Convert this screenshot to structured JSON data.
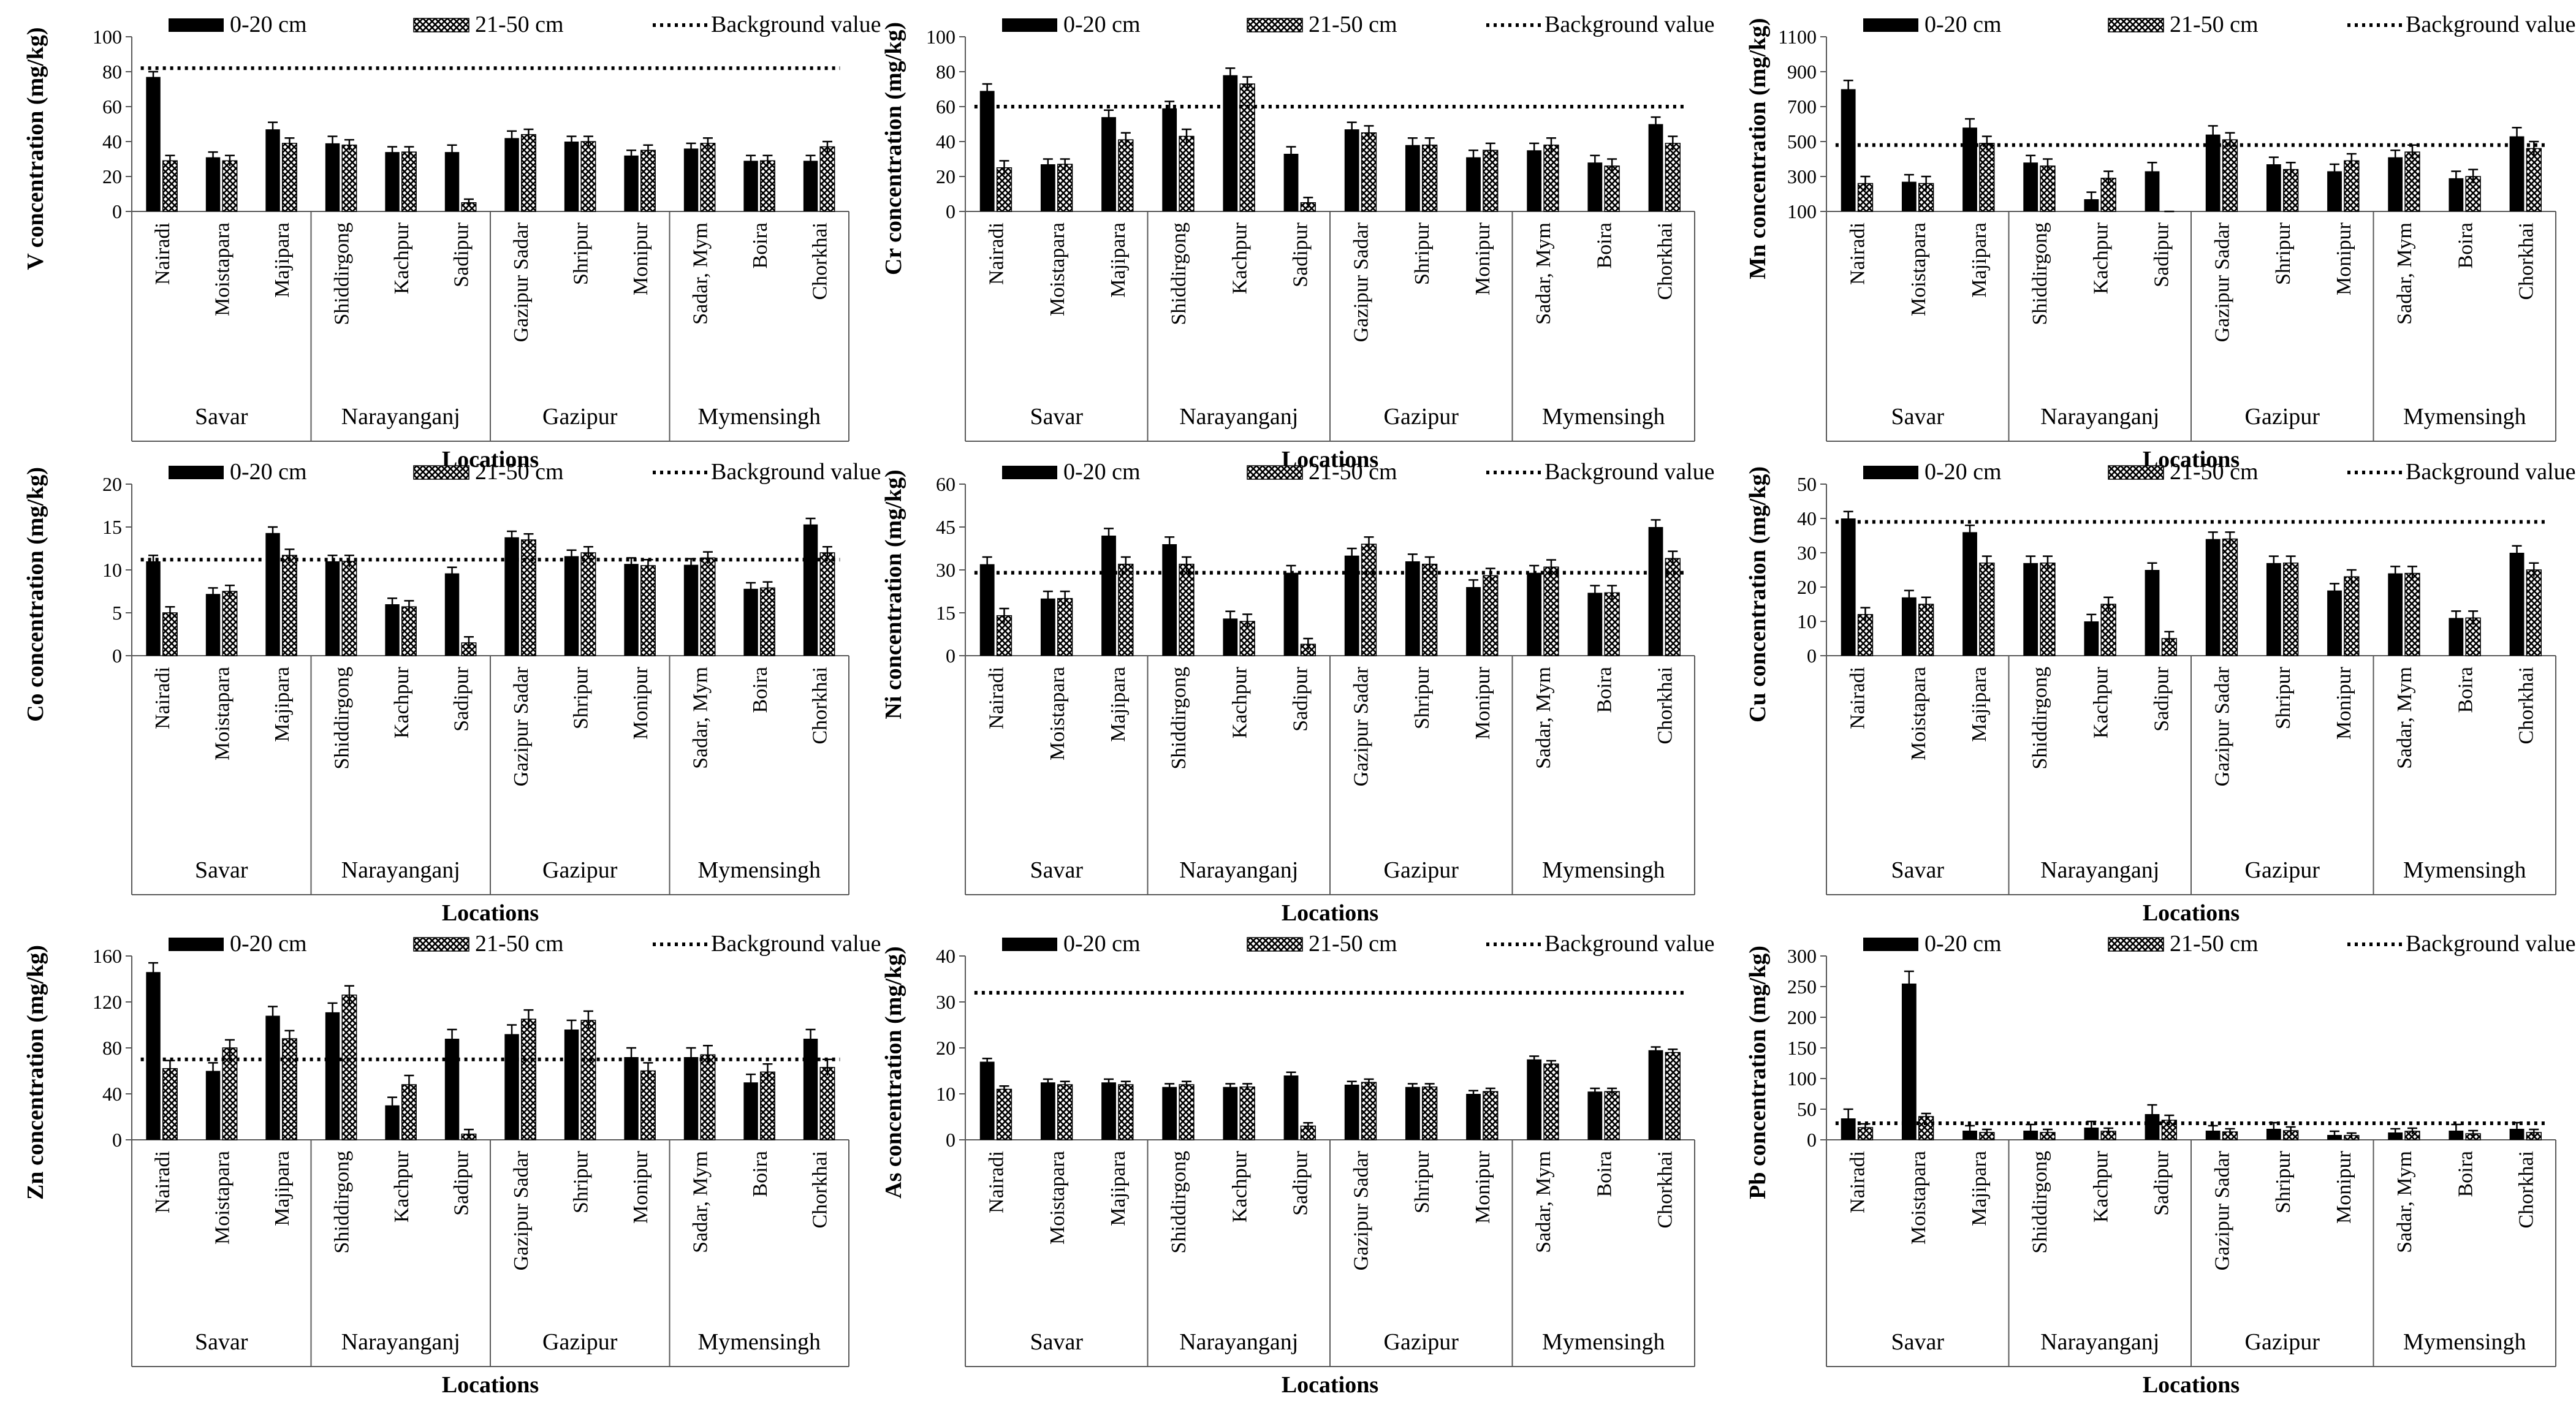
{
  "shared": {
    "categories": [
      "Nairadi",
      "Moistapara",
      "Majipara",
      "Shiddirgong",
      "Kachpur",
      "Sadipur",
      "Gazipur Sadar",
      "Shripur",
      "Monipur",
      "Sadar, Mym",
      "Boira",
      "Chorkhai"
    ],
    "groups": [
      {
        "name": "Savar",
        "count": 3
      },
      {
        "name": "Narayanganj",
        "count": 3
      },
      {
        "name": "Gazipur",
        "count": 3
      },
      {
        "name": "Mymensingh",
        "count": 3
      }
    ],
    "xlabel": "Locations",
    "legend": {
      "series1": "0-20 cm",
      "series2": "21-50 cm",
      "background": "Background value"
    },
    "colors": {
      "series1": "#000000",
      "series2_pattern": "#000000",
      "axis": "#595959"
    }
  },
  "chart_data": [
    {
      "type": "bar",
      "element": "V",
      "ylabel": "V concentration (mg/kg)",
      "ylim": [
        0,
        100
      ],
      "ticks": [
        0,
        20,
        40,
        60,
        80,
        100
      ],
      "background": 82,
      "series": [
        {
          "name": "0-20 cm",
          "values": [
            77,
            31,
            47,
            39,
            34,
            34,
            42,
            40,
            32,
            36,
            29,
            29
          ],
          "errors": [
            3,
            3,
            4,
            4,
            3,
            4,
            4,
            3,
            3,
            3,
            3,
            3
          ]
        },
        {
          "name": "21-50 cm",
          "values": [
            29,
            29,
            39,
            38,
            34,
            5,
            44,
            40,
            35,
            39,
            29,
            37
          ],
          "errors": [
            3,
            3,
            3,
            3,
            3,
            2,
            3,
            3,
            3,
            3,
            3,
            3
          ]
        }
      ]
    },
    {
      "type": "bar",
      "element": "Cr",
      "ylabel": "Cr concentration (mg/kg)",
      "ylim": [
        0,
        100
      ],
      "ticks": [
        0,
        20,
        40,
        60,
        80,
        100
      ],
      "background": 60,
      "series": [
        {
          "name": "0-20 cm",
          "values": [
            69,
            27,
            54,
            59,
            78,
            33,
            47,
            38,
            31,
            35,
            28,
            50
          ],
          "errors": [
            4,
            3,
            4,
            4,
            4,
            4,
            4,
            4,
            4,
            4,
            4,
            4
          ]
        },
        {
          "name": "21-50 cm",
          "values": [
            25,
            27,
            41,
            43,
            73,
            5,
            45,
            38,
            35,
            38,
            26,
            39
          ],
          "errors": [
            4,
            3,
            4,
            4,
            4,
            3,
            4,
            4,
            4,
            4,
            4,
            4
          ]
        }
      ]
    },
    {
      "type": "bar",
      "element": "Mn",
      "ylabel": "Mn concentration (mg/kg)",
      "ylim": [
        100,
        1100
      ],
      "ticks": [
        100,
        300,
        500,
        700,
        900,
        1100
      ],
      "background": 480,
      "series": [
        {
          "name": "0-20 cm",
          "values": [
            800,
            270,
            580,
            380,
            170,
            330,
            540,
            370,
            330,
            410,
            290,
            530
          ],
          "errors": [
            50,
            40,
            50,
            40,
            40,
            50,
            50,
            40,
            40,
            40,
            40,
            50
          ]
        },
        {
          "name": "21-50 cm",
          "values": [
            260,
            260,
            490,
            360,
            290,
            50,
            510,
            340,
            390,
            440,
            300,
            460
          ],
          "errors": [
            40,
            40,
            40,
            40,
            40,
            20,
            40,
            40,
            40,
            40,
            40,
            40
          ]
        }
      ]
    },
    {
      "type": "bar",
      "element": "Co",
      "ylabel": "Co concentration (mg/kg)",
      "ylim": [
        0,
        20
      ],
      "ticks": [
        0,
        5,
        10,
        15,
        20
      ],
      "background": 11.2,
      "series": [
        {
          "name": "0-20 cm",
          "values": [
            11,
            7.2,
            14.3,
            11,
            6,
            9.6,
            13.8,
            11.6,
            10.7,
            10.6,
            7.8,
            15.3
          ],
          "errors": [
            0.7,
            0.7,
            0.7,
            0.7,
            0.7,
            0.7,
            0.7,
            0.7,
            0.7,
            0.7,
            0.7,
            0.7
          ]
        },
        {
          "name": "21-50 cm",
          "values": [
            5,
            7.5,
            11.7,
            11,
            5.7,
            1.5,
            13.5,
            12,
            10.5,
            11.4,
            7.9,
            12
          ],
          "errors": [
            0.7,
            0.7,
            0.7,
            0.7,
            0.7,
            0.7,
            0.7,
            0.7,
            0.7,
            0.7,
            0.7,
            0.7
          ]
        }
      ]
    },
    {
      "type": "bar",
      "element": "Ni",
      "ylabel": "Ni concentration (mg/kg)",
      "ylim": [
        0,
        60
      ],
      "ticks": [
        0,
        15,
        30,
        45,
        60
      ],
      "background": 29,
      "series": [
        {
          "name": "0-20 cm",
          "values": [
            32,
            20,
            42,
            39,
            13,
            29,
            35,
            33,
            24,
            29,
            22,
            45
          ],
          "errors": [
            2.5,
            2.5,
            2.5,
            2.5,
            2.5,
            2.5,
            2.5,
            2.5,
            2.5,
            2.5,
            2.5,
            2.5
          ]
        },
        {
          "name": "21-50 cm",
          "values": [
            14,
            20,
            32,
            32,
            12,
            4,
            39,
            32,
            28,
            31,
            22,
            34
          ],
          "errors": [
            2.5,
            2.5,
            2.5,
            2.5,
            2.5,
            2.0,
            2.5,
            2.5,
            2.5,
            2.5,
            2.5,
            2.5
          ]
        }
      ]
    },
    {
      "type": "bar",
      "element": "Cu",
      "ylabel": "Cu concentration (mg/kg)",
      "ylim": [
        0,
        50
      ],
      "ticks": [
        0,
        10,
        20,
        30,
        40,
        50
      ],
      "background": 39,
      "series": [
        {
          "name": "0-20 cm",
          "values": [
            40,
            17,
            36,
            27,
            10,
            25,
            34,
            27,
            19,
            24,
            11,
            30
          ],
          "errors": [
            2,
            2,
            2,
            2,
            2,
            2,
            2,
            2,
            2,
            2,
            2,
            2
          ]
        },
        {
          "name": "21-50 cm",
          "values": [
            12,
            15,
            27,
            27,
            15,
            5,
            34,
            27,
            23,
            24,
            11,
            25
          ],
          "errors": [
            2,
            2,
            2,
            2,
            2,
            2,
            2,
            2,
            2,
            2,
            2,
            2
          ]
        }
      ]
    },
    {
      "type": "bar",
      "element": "Zn",
      "ylabel": "Zn concentration (mg/kg)",
      "ylim": [
        0,
        160
      ],
      "ticks": [
        0,
        40,
        80,
        120,
        160
      ],
      "background": 70,
      "series": [
        {
          "name": "0-20 cm",
          "values": [
            146,
            60,
            108,
            111,
            30,
            88,
            92,
            96,
            72,
            72,
            50,
            88
          ],
          "errors": [
            8,
            7,
            8,
            8,
            7,
            8,
            8,
            8,
            8,
            8,
            7,
            8
          ]
        },
        {
          "name": "21-50 cm",
          "values": [
            62,
            80,
            88,
            126,
            48,
            5,
            105,
            104,
            60,
            74,
            59,
            63
          ],
          "errors": [
            7,
            7,
            7,
            8,
            8,
            4,
            8,
            8,
            7,
            8,
            7,
            7
          ]
        }
      ]
    },
    {
      "type": "bar",
      "element": "As",
      "ylabel": "As concentration (mg/kg)",
      "ylim": [
        0,
        40
      ],
      "ticks": [
        0,
        10,
        20,
        30,
        40
      ],
      "background": 32,
      "series": [
        {
          "name": "0-20 cm",
          "values": [
            17,
            12.5,
            12.5,
            11.5,
            11.5,
            14,
            12,
            11.5,
            10,
            17.5,
            10.5,
            19.5
          ],
          "errors": [
            0.7,
            0.7,
            0.7,
            0.7,
            0.7,
            0.7,
            0.7,
            0.7,
            0.7,
            0.7,
            0.7,
            0.7
          ]
        },
        {
          "name": "21-50 cm",
          "values": [
            11,
            12,
            12,
            12,
            11.5,
            3,
            12.5,
            11.5,
            10.5,
            16.5,
            10.5,
            19
          ],
          "errors": [
            0.7,
            0.7,
            0.7,
            0.7,
            0.7,
            0.7,
            0.7,
            0.7,
            0.7,
            0.7,
            0.7,
            0.7
          ]
        }
      ]
    },
    {
      "type": "bar",
      "element": "Pb",
      "ylabel": "Pb concentration (mg/kg)",
      "ylim": [
        0,
        300
      ],
      "ticks": [
        0,
        50,
        100,
        150,
        200,
        250,
        300
      ],
      "background": 27,
      "series": [
        {
          "name": "0-20 cm",
          "values": [
            35,
            255,
            15,
            15,
            20,
            42,
            15,
            18,
            8,
            12,
            15,
            18
          ],
          "errors": [
            15,
            20,
            8,
            10,
            10,
            15,
            8,
            10,
            6,
            6,
            10,
            10
          ]
        },
        {
          "name": "21-50 cm",
          "values": [
            20,
            38,
            12,
            12,
            14,
            32,
            13,
            15,
            7,
            14,
            10,
            12
          ],
          "errors": [
            6,
            5,
            5,
            5,
            5,
            8,
            5,
            6,
            4,
            5,
            5,
            5
          ]
        }
      ]
    }
  ]
}
